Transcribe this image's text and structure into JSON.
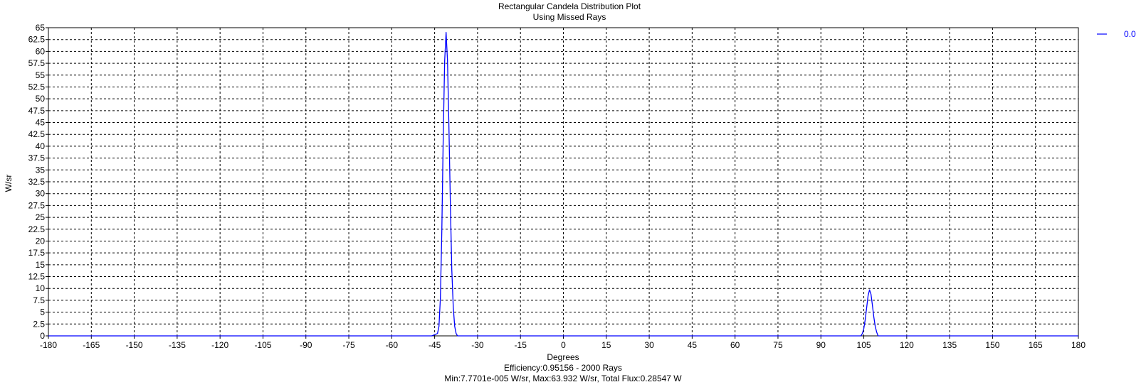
{
  "chart_data": {
    "type": "line",
    "title": "Rectangular Candela Distribution Plot",
    "subtitle": "Using Missed Rays",
    "xlabel": "Degrees",
    "ylabel": "W/sr",
    "xlim": [
      -180,
      180
    ],
    "ylim": [
      0,
      65
    ],
    "xticks": [
      -180,
      -165,
      -150,
      -135,
      -120,
      -105,
      -90,
      -75,
      -60,
      -45,
      -30,
      -15,
      0,
      15,
      30,
      45,
      60,
      75,
      90,
      105,
      120,
      135,
      150,
      165,
      180
    ],
    "xtick_labels": [
      "-180",
      "-165",
      "-150",
      "-135",
      "-120",
      "-105",
      "-90",
      "-75",
      "-60",
      "-45",
      "-30",
      "-15",
      "0",
      "15",
      "30",
      "45",
      "60",
      "75",
      "90",
      "105",
      "120",
      "135",
      "150",
      "165",
      "180"
    ],
    "yticks": [
      0,
      2.5,
      5,
      7.5,
      10,
      12.5,
      15,
      17.5,
      20,
      22.5,
      25,
      27.5,
      30,
      32.5,
      35,
      37.5,
      40,
      42.5,
      45,
      47.5,
      50,
      52.5,
      55,
      57.5,
      60,
      62.5,
      65
    ],
    "ytick_labels": [
      "0",
      "2.5",
      "5",
      "7.5",
      "10",
      "12.5",
      "15",
      "17.5",
      "20",
      "22.5",
      "25",
      "27.5",
      "30",
      "32.5",
      "35",
      "37.5",
      "40",
      "42.5",
      "45",
      "47.5",
      "50",
      "52.5",
      "55",
      "57.5",
      "60",
      "62.5",
      "65"
    ],
    "grid": true,
    "legend_position": "top-right",
    "series": [
      {
        "name": "0.0",
        "color": "#0000ff",
        "x": [
          -180,
          -46,
          -44,
          -43.5,
          -43,
          -42.5,
          -42,
          -41.5,
          -41,
          -40.5,
          -40,
          -39.5,
          -39,
          -38.5,
          -38,
          -37.5,
          -37,
          -35,
          104,
          104.5,
          105,
          105.5,
          106,
          106.5,
          107,
          107.5,
          108,
          108.5,
          109,
          109.5,
          110,
          180
        ],
        "y": [
          0,
          0,
          0.5,
          2,
          8,
          22,
          42,
          58,
          64,
          58,
          44,
          28,
          14,
          6,
          2,
          0.5,
          0,
          0,
          0,
          0.5,
          1.5,
          3.5,
          6,
          8.5,
          9.7,
          8.8,
          6.5,
          4,
          2,
          0.8,
          0,
          0
        ]
      }
    ],
    "footer_line1": "Efficiency:0.95156 - 2000 Rays",
    "footer_line2": "Min:7.7701e-005 W/sr, Max:63.932 W/sr, Total Flux:0.28547 W"
  }
}
